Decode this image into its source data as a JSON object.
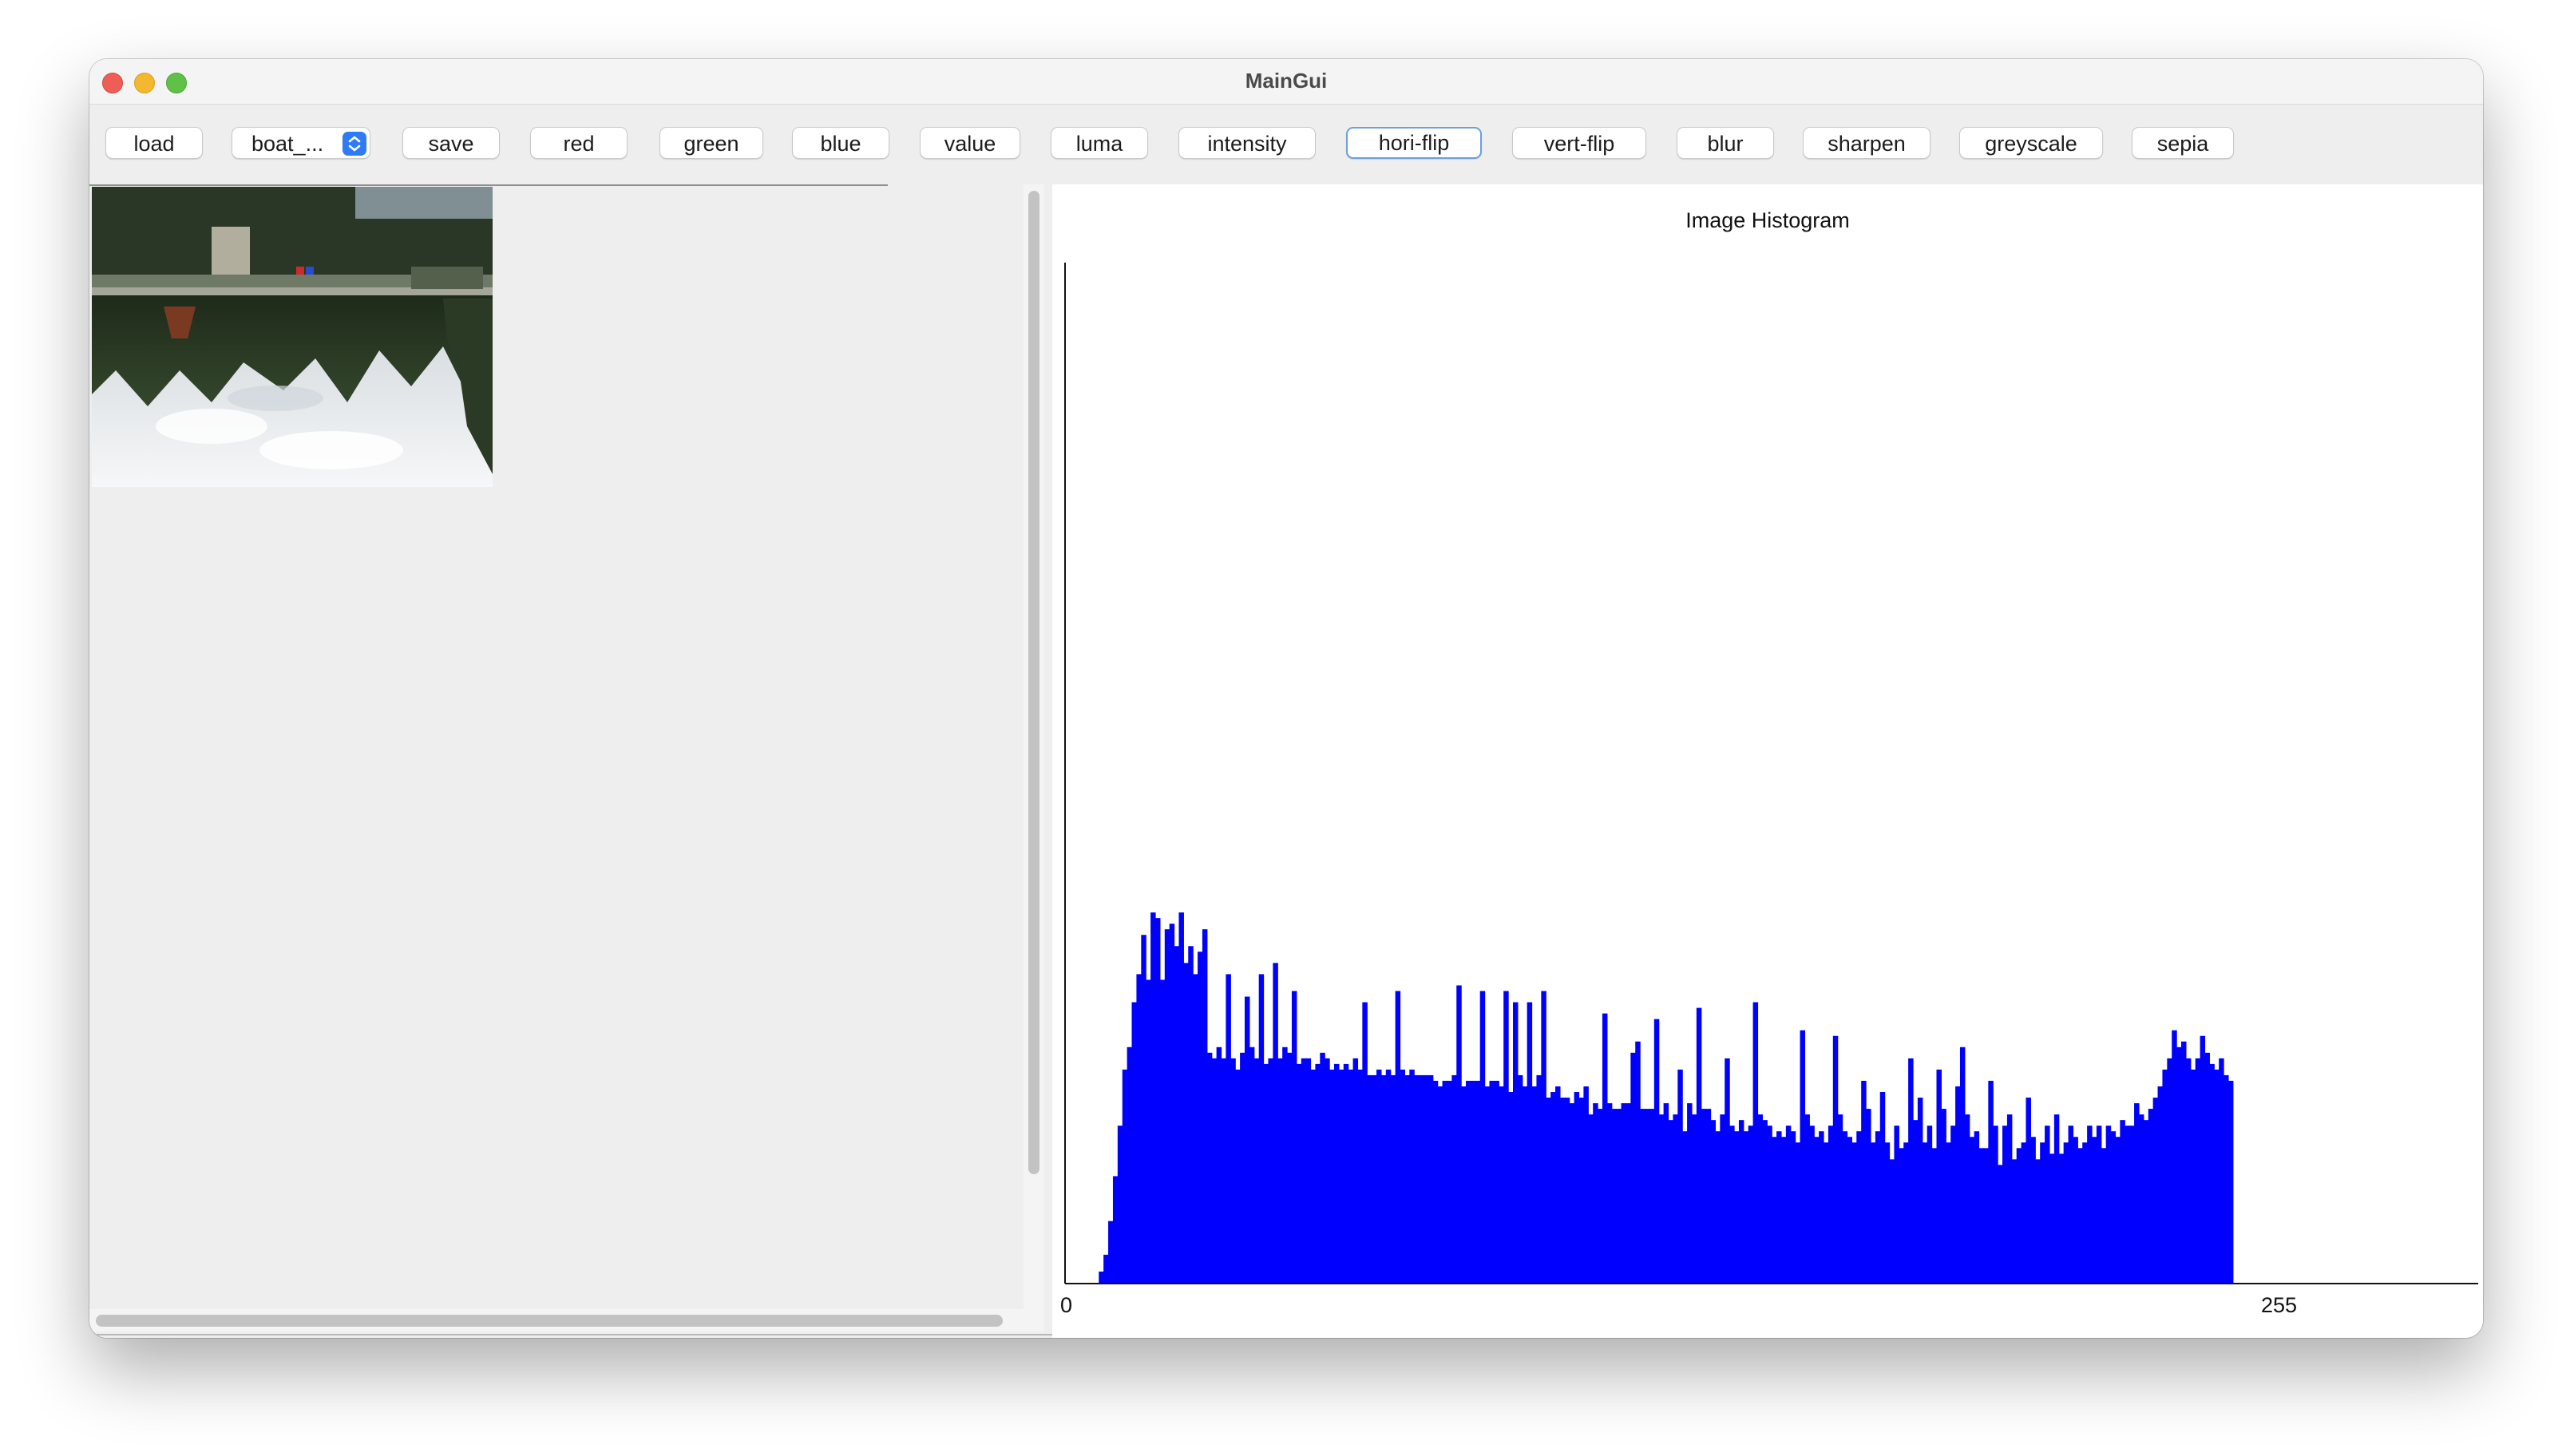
{
  "window": {
    "title": "MainGui"
  },
  "toolbar": {
    "load": "load",
    "image_select": {
      "value": "boat_..."
    },
    "save": "save",
    "red": "red",
    "green": "green",
    "blue": "blue",
    "value": "value",
    "luma": "luma",
    "intensity": "intensity",
    "hori_flip": "hori-flip",
    "vert_flip": "vert-flip",
    "blur": "blur",
    "sharpen": "sharpen",
    "greyscale": "greyscale",
    "sepia": "sepia"
  },
  "colors": {
    "bar": "#0000ff",
    "active_border": "#6a9fe0",
    "select_accent": "#2f7bf5"
  },
  "chart_data": {
    "type": "bar",
    "title": "Image Histogram",
    "x_range": [
      0,
      255
    ],
    "tick_labels": [
      "0",
      "255"
    ],
    "series": [
      {
        "values": [
          0,
          0,
          0,
          0,
          0,
          0,
          0,
          0,
          0,
          0,
          0,
          0,
          0,
          0,
          0,
          0,
          0,
          0,
          0,
          0,
          0,
          0,
          0,
          0,
          0,
          0,
          0,
          0,
          0,
          0,
          0,
          0,
          0,
          0,
          0,
          0,
          0,
          0,
          0,
          0,
          0,
          0,
          0,
          0,
          0,
          0,
          0,
          0,
          0,
          0,
          0,
          0,
          0,
          0,
          0,
          0,
          0,
          0,
          0,
          0,
          0,
          0,
          0,
          0,
          0,
          0,
          0,
          0,
          0,
          0,
          0,
          0,
          0,
          0,
          0,
          0,
          0,
          0,
          0,
          0,
          0,
          0,
          0,
          0,
          0,
          0,
          0,
          0,
          0,
          0,
          0,
          0,
          0,
          0,
          0,
          0,
          0,
          0,
          0,
          0,
          0,
          0,
          0,
          0,
          0,
          0,
          0,
          0,
          0,
          0,
          0,
          0,
          0,
          0,
          0,
          0,
          0,
          0,
          0,
          0,
          0,
          0,
          0,
          0,
          0,
          0,
          0,
          0,
          0,
          0,
          0,
          0,
          0,
          0,
          0,
          0,
          0,
          0,
          0,
          0,
          0,
          0,
          0,
          0,
          0,
          0,
          0,
          0,
          0,
          0,
          0,
          0,
          0,
          0,
          0,
          0,
          0,
          0,
          0,
          0,
          0,
          0,
          0,
          0,
          0,
          0,
          0,
          0,
          0,
          0,
          0,
          0,
          0,
          0,
          0,
          0,
          0,
          0,
          0,
          0,
          0,
          0,
          0,
          0,
          0,
          0,
          0,
          0,
          0,
          0,
          0,
          0,
          0,
          0,
          0,
          0,
          0,
          0,
          0,
          0,
          0,
          0,
          0,
          0,
          0,
          0,
          0,
          0,
          0,
          0,
          0,
          0,
          0,
          0,
          0,
          0,
          0,
          0,
          0,
          0,
          0,
          0,
          0,
          0,
          0,
          0,
          0,
          0,
          0,
          0,
          0,
          0,
          0,
          0,
          0,
          0,
          0,
          0,
          0,
          0,
          0,
          0,
          0,
          0,
          0,
          0,
          0,
          0,
          0,
          0,
          0,
          0,
          0,
          0,
          0,
          0
        ]
      }
    ],
    "values": [
      0,
      0,
      0,
      0,
      0,
      0,
      0,
      2,
      5,
      11,
      19,
      28,
      38,
      42,
      50,
      55,
      62,
      54,
      66,
      65,
      54,
      63,
      64,
      60,
      66,
      57,
      60,
      55,
      59,
      63,
      41,
      40,
      42,
      40,
      55,
      40,
      38,
      41,
      51,
      42,
      40,
      55,
      39,
      40,
      57,
      40,
      42,
      41,
      52,
      39,
      40,
      40,
      38,
      39,
      41,
      40,
      38,
      39,
      38,
      39,
      38,
      40,
      38,
      50,
      37,
      37,
      38,
      37,
      38,
      37,
      52,
      38,
      37,
      38,
      37,
      37,
      37,
      37,
      36,
      35,
      36,
      36,
      37,
      53,
      35,
      36,
      36,
      36,
      52,
      35,
      36,
      36,
      35,
      52,
      34,
      50,
      37,
      35,
      50,
      35,
      37,
      52,
      33,
      34,
      35,
      33,
      33,
      32,
      34,
      33,
      35,
      30,
      32,
      31,
      48,
      32,
      31,
      31,
      32,
      32,
      41,
      43,
      31,
      31,
      31,
      47,
      30,
      32,
      29,
      30,
      38,
      27,
      32,
      30,
      49,
      31,
      31,
      29,
      27,
      30,
      40,
      28,
      27,
      29,
      27,
      28,
      50,
      30,
      29,
      28,
      26,
      27,
      26,
      28,
      27,
      25,
      45,
      30,
      28,
      26,
      27,
      25,
      28,
      44,
      30,
      27,
      26,
      25,
      27,
      36,
      31,
      25,
      27,
      34,
      25,
      22,
      28,
      24,
      25,
      40,
      29,
      33,
      25,
      28,
      24,
      38,
      31,
      25,
      28,
      35,
      42,
      30,
      26,
      27,
      24,
      24,
      36,
      28,
      21,
      28,
      30,
      22,
      24,
      25,
      33,
      26,
      22,
      25,
      28,
      23,
      30,
      23,
      25,
      28,
      26,
      24,
      25,
      28,
      26,
      28,
      24,
      28,
      27,
      26,
      29,
      28,
      28,
      32,
      30,
      29,
      31,
      33,
      35,
      38,
      40,
      45,
      42,
      43,
      40,
      38,
      40,
      44,
      41,
      39,
      38,
      40,
      37,
      36,
      0,
      0,
      0,
      0,
      0,
      0,
      0,
      0
    ]
  }
}
